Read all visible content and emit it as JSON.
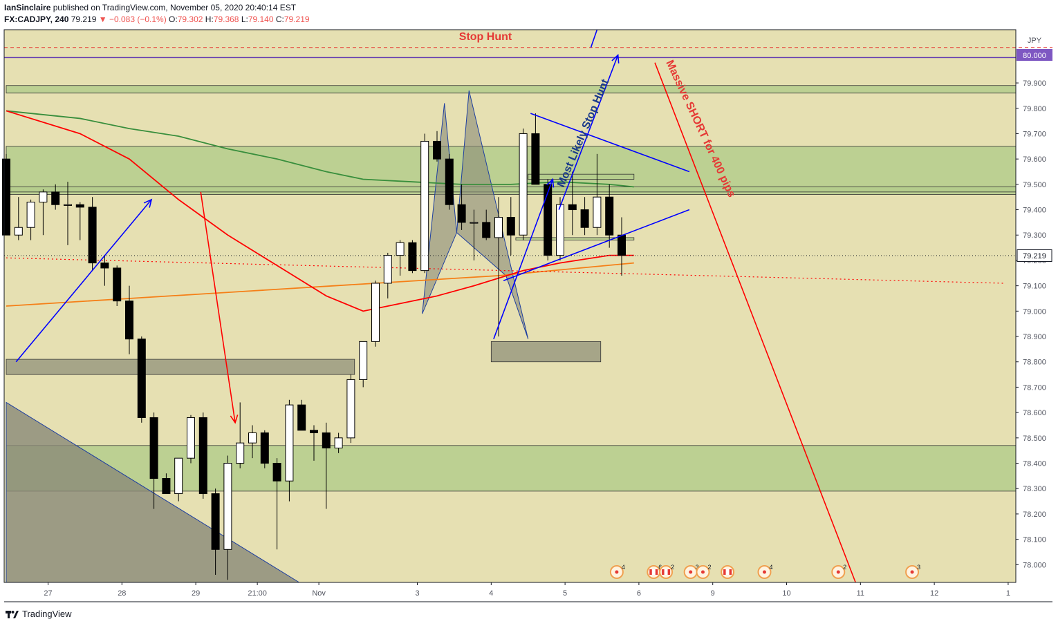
{
  "header": {
    "author": "IanSinclaire",
    "published": "published on TradingView.com, November 05, 2020 20:40:14 EST",
    "symbol": "FX:CADJPY, 240",
    "last": "79.219",
    "change": "▼ −0.083 (−0.1%)",
    "open_label": "O:",
    "open": "79.302",
    "high_label": "H:",
    "high": "79.368",
    "low_label": "L:",
    "low": "79.140",
    "close_label": "C:",
    "close": "79.219"
  },
  "footer": {
    "brand": "TradingView"
  },
  "colors": {
    "plot_bg": "#e6e0b2",
    "zone": "#b4cc8c",
    "zone_dark": "#9a9a80",
    "up": "#ffffff",
    "down": "#000000",
    "ema_red": "#ff0000",
    "ema_green": "#388e3c",
    "ema_orange": "#f57f17",
    "blue": "#0000ff",
    "label_red": "#e53935",
    "price_purple": "#7e57c2"
  },
  "annotations": {
    "stop_hunt": "Stop Hunt",
    "most_likely": "Most Likely Stop Hunt",
    "massive_short": "Massive SHORT for 400 pips"
  },
  "axis": {
    "currency": "JPY",
    "marked_price": "80.000",
    "current_price": "79.219"
  },
  "chart_data": {
    "type": "candlestick",
    "symbol": "FX:CADJPY",
    "timeframe": "240",
    "ylim": [
      77.93,
      80.11
    ],
    "y_ticks": [
      "79.900",
      "79.800",
      "79.700",
      "79.600",
      "79.500",
      "79.400",
      "79.300",
      "79.200",
      "79.100",
      "79.000",
      "78.900",
      "78.800",
      "78.700",
      "78.600",
      "78.500",
      "78.400",
      "78.300",
      "78.200",
      "78.100",
      "78.000"
    ],
    "x_ticks": [
      {
        "label": "27",
        "bar": 3.4
      },
      {
        "label": "28",
        "bar": 9.4
      },
      {
        "label": "29",
        "bar": 15.4
      },
      {
        "label": "21:00",
        "bar": 20.4
      },
      {
        "label": "Nov",
        "bar": 25.4
      },
      {
        "label": "3",
        "bar": 33.4
      },
      {
        "label": "4",
        "bar": 39.4
      },
      {
        "label": "5",
        "bar": 45.4
      },
      {
        "label": "6",
        "bar": 51.4
      },
      {
        "label": "9",
        "bar": 57.4
      },
      {
        "label": "10",
        "bar": 63.4
      },
      {
        "label": "11",
        "bar": 69.4
      },
      {
        "label": "12",
        "bar": 75.4
      },
      {
        "label": "1",
        "bar": 81.4
      }
    ],
    "candles": [
      [
        79.6,
        79.62,
        79.3,
        79.3
      ],
      [
        79.3,
        79.45,
        79.28,
        79.33
      ],
      [
        79.33,
        79.44,
        79.28,
        79.43
      ],
      [
        79.43,
        79.48,
        79.3,
        79.47
      ],
      [
        79.47,
        79.5,
        79.4,
        79.42
      ],
      [
        79.42,
        79.51,
        79.26,
        79.42
      ],
      [
        79.42,
        79.43,
        79.28,
        79.41
      ],
      [
        79.41,
        79.45,
        79.16,
        79.19
      ],
      [
        79.19,
        79.22,
        79.1,
        79.17
      ],
      [
        79.17,
        79.18,
        79.02,
        79.04
      ],
      [
        79.04,
        79.1,
        78.83,
        78.89
      ],
      [
        78.89,
        78.9,
        78.56,
        78.58
      ],
      [
        78.58,
        78.6,
        78.22,
        78.34
      ],
      [
        78.34,
        78.36,
        78.28,
        78.28
      ],
      [
        78.28,
        78.4,
        78.25,
        78.42
      ],
      [
        78.42,
        78.59,
        78.4,
        78.58
      ],
      [
        78.58,
        78.6,
        78.26,
        78.28
      ],
      [
        78.28,
        78.3,
        77.96,
        78.06
      ],
      [
        78.06,
        78.43,
        77.94,
        78.4
      ],
      [
        78.4,
        78.64,
        78.38,
        78.48
      ],
      [
        78.48,
        78.55,
        78.42,
        78.52
      ],
      [
        78.52,
        78.53,
        78.38,
        78.4
      ],
      [
        78.4,
        78.42,
        78.06,
        78.33
      ],
      [
        78.33,
        78.65,
        78.25,
        78.63
      ],
      [
        78.63,
        78.65,
        78.53,
        78.53
      ],
      [
        78.53,
        78.55,
        78.41,
        78.52
      ],
      [
        78.52,
        78.56,
        78.22,
        78.46
      ],
      [
        78.46,
        78.52,
        78.44,
        78.5
      ],
      [
        78.5,
        78.75,
        78.48,
        78.73
      ],
      [
        78.73,
        78.88,
        78.7,
        78.88
      ],
      [
        78.88,
        79.12,
        78.86,
        79.11
      ],
      [
        79.11,
        79.23,
        79.05,
        79.22
      ],
      [
        79.22,
        79.28,
        79.14,
        79.27
      ],
      [
        79.27,
        79.28,
        79.15,
        79.16
      ],
      [
        79.16,
        79.7,
        79.15,
        79.67
      ],
      [
        79.67,
        79.71,
        79.59,
        79.6
      ],
      [
        79.6,
        79.62,
        79.4,
        79.42
      ],
      [
        79.42,
        79.5,
        79.32,
        79.35
      ],
      [
        79.35,
        79.4,
        79.2,
        79.35
      ],
      [
        79.35,
        79.4,
        79.28,
        79.29
      ],
      [
        79.29,
        79.45,
        78.9,
        79.37
      ],
      [
        79.37,
        79.45,
        79.22,
        79.3
      ],
      [
        79.3,
        79.72,
        79.28,
        79.7
      ],
      [
        79.7,
        79.78,
        79.5,
        79.5
      ],
      [
        79.5,
        79.52,
        79.2,
        79.22
      ],
      [
        79.22,
        79.45,
        79.2,
        79.42
      ],
      [
        79.42,
        79.55,
        79.3,
        79.4
      ],
      [
        79.4,
        79.45,
        79.3,
        79.33
      ],
      [
        79.33,
        79.62,
        79.3,
        79.45
      ],
      [
        79.45,
        79.5,
        79.25,
        79.3
      ],
      [
        79.3,
        79.37,
        79.14,
        79.22
      ]
    ],
    "ema_red": [
      [
        0,
        79.79
      ],
      [
        6,
        79.7
      ],
      [
        10,
        79.6
      ],
      [
        14,
        79.44
      ],
      [
        18,
        79.3
      ],
      [
        22,
        79.18
      ],
      [
        26,
        79.06
      ],
      [
        29,
        79.0
      ],
      [
        32,
        79.03
      ],
      [
        35,
        79.06
      ],
      [
        38,
        79.1
      ],
      [
        42,
        79.16
      ],
      [
        45,
        79.19
      ],
      [
        49,
        79.22
      ],
      [
        51,
        79.22
      ]
    ],
    "ema_green": [
      [
        0,
        79.79
      ],
      [
        6,
        79.76
      ],
      [
        10,
        79.72
      ],
      [
        14,
        79.69
      ],
      [
        18,
        79.64
      ],
      [
        22,
        79.6
      ],
      [
        26,
        79.55
      ],
      [
        29,
        79.52
      ],
      [
        33,
        79.51
      ],
      [
        37,
        79.5
      ],
      [
        41,
        79.5
      ],
      [
        45,
        79.51
      ],
      [
        49,
        79.5
      ],
      [
        51,
        79.49
      ]
    ],
    "ema_orange": [
      [
        0,
        79.02
      ],
      [
        10,
        79.05
      ],
      [
        20,
        79.08
      ],
      [
        30,
        79.11
      ],
      [
        40,
        79.14
      ],
      [
        51,
        79.19
      ]
    ],
    "zones": [
      {
        "y1": 79.89,
        "y2": 79.86,
        "x1": 0,
        "x2": null,
        "color": "zone"
      },
      {
        "y1": 79.65,
        "y2": 79.46,
        "x1": 0,
        "x2": null,
        "color": "zone"
      },
      {
        "y1": 79.49,
        "y2": 79.47,
        "x1": 0,
        "x2": null,
        "color": "zone"
      },
      {
        "y1": 78.81,
        "y2": 78.75,
        "x1": 0,
        "x2": 28.3,
        "color": "zone_dark"
      },
      {
        "y1": 78.47,
        "y2": 78.29,
        "x1": 0,
        "x2": null,
        "color": "zone"
      },
      {
        "y1": 78.88,
        "y2": 78.8,
        "x1": 39.4,
        "x2": 48.3,
        "color": "zone_dark"
      },
      {
        "y1": 79.54,
        "y2": 79.52,
        "x1": 42.4,
        "x2": 51.0,
        "color": "zone"
      },
      {
        "y1": 79.29,
        "y2": 79.28,
        "x1": 41.4,
        "x2": 51.0,
        "color": "zone"
      }
    ],
    "lines": [
      {
        "x1": 0.8,
        "y1": 78.8,
        "x2": 11.8,
        "y2": 79.44,
        "color": "blue",
        "arrow": true
      },
      {
        "x1": 15.8,
        "y1": 79.47,
        "x2": 18.6,
        "y2": 78.56,
        "color": "ema_red",
        "arrow": true
      },
      {
        "x1": 39.6,
        "y1": 78.89,
        "x2": 44.4,
        "y2": 79.52,
        "color": "blue",
        "arrow": true
      },
      {
        "x1": 42.6,
        "y1": 79.78,
        "x2": 55.5,
        "y2": 79.55,
        "color": "blue",
        "arrow": false
      },
      {
        "x1": 40.4,
        "y1": 79.12,
        "x2": 55.5,
        "y2": 79.4,
        "color": "blue",
        "arrow": false
      },
      {
        "x1": 44.9,
        "y1": 79.4,
        "x2": 49.7,
        "y2": 80.01,
        "color": "blue",
        "arrow": true
      },
      {
        "x1": 47.5,
        "y1": 80.04,
        "x2": 48.0,
        "y2": 80.11,
        "color": "blue",
        "arrow": false
      },
      {
        "x1": 52.7,
        "y1": 79.98,
        "x2": 69.0,
        "y2": 77.93,
        "color": "ema_red",
        "arrow": false
      }
    ],
    "dotted": [
      {
        "x1": 0,
        "y1": 79.21,
        "x2": 81.0,
        "y2": 79.11,
        "color": "ema_red"
      }
    ],
    "patterns": [
      [
        [
          33.8,
          78.99
        ],
        [
          35.6,
          79.82
        ],
        [
          36.6,
          79.31
        ],
        [
          37.6,
          79.87
        ],
        [
          42.4,
          78.89
        ],
        [
          40.6,
          79.14
        ],
        [
          36.6,
          79.31
        ]
      ]
    ],
    "triangle": [
      [
        0,
        78.64
      ],
      [
        23.8,
        77.93
      ],
      [
        0,
        77.93
      ]
    ],
    "events": [
      {
        "bar": 49.6,
        "count": "4",
        "flag": false
      },
      {
        "bar": 52.6,
        "count": "6",
        "flag": true
      },
      {
        "bar": 53.6,
        "count": "2",
        "flag": true
      },
      {
        "bar": 55.6,
        "count": "3",
        "flag": false
      },
      {
        "bar": 56.6,
        "count": "2",
        "flag": false
      },
      {
        "bar": 58.6,
        "count": "",
        "flag": true
      },
      {
        "bar": 61.6,
        "count": "4",
        "flag": false
      },
      {
        "bar": 67.6,
        "count": "2",
        "flag": false
      },
      {
        "bar": 73.6,
        "count": "3",
        "flag": false
      }
    ]
  }
}
